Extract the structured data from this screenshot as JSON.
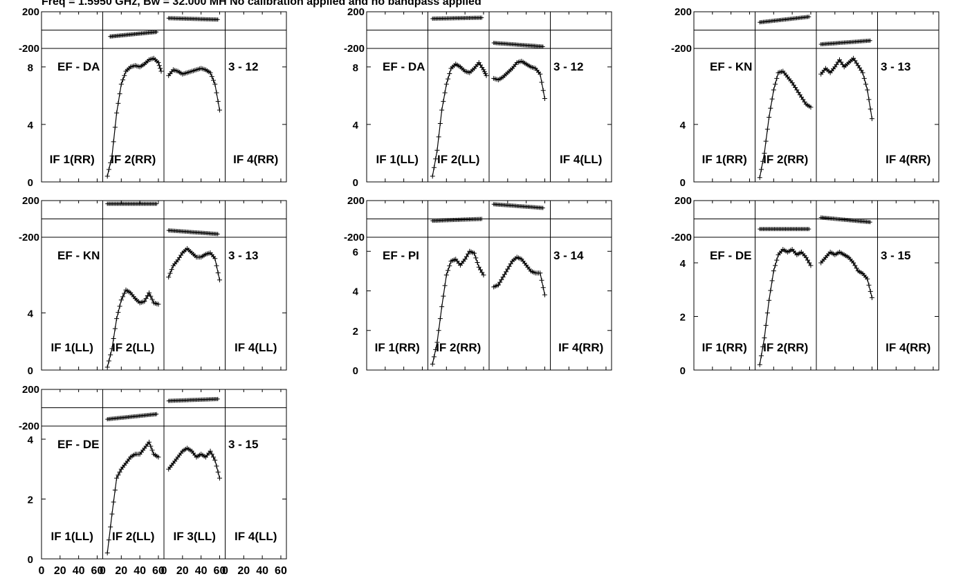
{
  "header": {
    "title": "Freq = 1.5950 GHz, Bw = 32.000 MH   No calibration applied and no bandpass applied"
  },
  "x_ticks": [
    "0",
    "20",
    "40",
    "60"
  ],
  "chart_data": [
    {
      "type": "line",
      "baseline": "EF - DA",
      "scan": "3 - 12",
      "pol": "RR",
      "if_labels": [
        "IF 1(RR)",
        "IF 2(RR)",
        "",
        "IF 4(RR)"
      ],
      "phase": {
        "ylim": [
          -200,
          200
        ],
        "ticks": [
          "200",
          "-200"
        ],
        "if1": [
          [
            8,
            -70
          ],
          [
            58,
            -20
          ]
        ],
        "if2": [
          [
            5,
            130
          ],
          [
            58,
            115
          ]
        ]
      },
      "amp": {
        "ylim": [
          0,
          9
        ],
        "ticks": [
          "8",
          "4",
          "0"
        ],
        "if1": [
          [
            5,
            0.4
          ],
          [
            10,
            1.8
          ],
          [
            15,
            4.8
          ],
          [
            20,
            6.8
          ],
          [
            25,
            7.7
          ],
          [
            30,
            8.0
          ],
          [
            35,
            8.1
          ],
          [
            40,
            8.0
          ],
          [
            45,
            8.2
          ],
          [
            50,
            8.5
          ],
          [
            55,
            8.6
          ],
          [
            60,
            8.3
          ],
          [
            63,
            7.7
          ]
        ],
        "if2": [
          [
            5,
            7.4
          ],
          [
            10,
            7.8
          ],
          [
            15,
            7.7
          ],
          [
            20,
            7.5
          ],
          [
            25,
            7.6
          ],
          [
            30,
            7.7
          ],
          [
            35,
            7.8
          ],
          [
            40,
            7.9
          ],
          [
            45,
            7.8
          ],
          [
            50,
            7.6
          ],
          [
            55,
            6.8
          ],
          [
            60,
            5.0
          ]
        ]
      }
    },
    {
      "type": "line",
      "baseline": "EF - DA",
      "scan": "3 - 12",
      "pol": "LL",
      "if_labels": [
        "IF 1(LL)",
        "IF 2(LL)",
        "",
        "IF 4(LL)"
      ],
      "phase": {
        "ylim": [
          -200,
          200
        ],
        "ticks": [
          "200",
          "-200"
        ],
        "if1": [
          [
            5,
            125
          ],
          [
            58,
            135
          ]
        ],
        "if2": [
          [
            5,
            -140
          ],
          [
            58,
            -180
          ]
        ]
      },
      "amp": {
        "ylim": [
          0,
          9
        ],
        "ticks": [
          "8",
          "4",
          "0"
        ],
        "if1": [
          [
            5,
            0.4
          ],
          [
            10,
            2.2
          ],
          [
            15,
            5.0
          ],
          [
            20,
            6.8
          ],
          [
            25,
            7.9
          ],
          [
            30,
            8.2
          ],
          [
            35,
            8.0
          ],
          [
            40,
            7.7
          ],
          [
            45,
            7.6
          ],
          [
            50,
            7.9
          ],
          [
            55,
            8.3
          ],
          [
            60,
            7.8
          ],
          [
            63,
            7.4
          ]
        ],
        "if2": [
          [
            5,
            7.2
          ],
          [
            10,
            7.1
          ],
          [
            15,
            7.3
          ],
          [
            20,
            7.6
          ],
          [
            25,
            7.9
          ],
          [
            30,
            8.3
          ],
          [
            35,
            8.4
          ],
          [
            40,
            8.2
          ],
          [
            45,
            8.0
          ],
          [
            50,
            7.9
          ],
          [
            55,
            7.5
          ],
          [
            60,
            5.8
          ]
        ]
      }
    },
    {
      "type": "line",
      "baseline": "EF - KN",
      "scan": "3 - 13",
      "pol": "RR",
      "if_labels": [
        "IF 1(RR)",
        "IF 2(RR)",
        "",
        "IF 4(RR)"
      ],
      "phase": {
        "ylim": [
          -200,
          200
        ],
        "ticks": [
          "200",
          "-200"
        ],
        "if1": [
          [
            5,
            85
          ],
          [
            58,
            145
          ]
        ],
        "if2": [
          [
            5,
            -155
          ],
          [
            58,
            -115
          ]
        ]
      },
      "amp": {
        "ylim": [
          0,
          9
        ],
        "ticks": [
          "4",
          "0"
        ],
        "if1": [
          [
            5,
            0.3
          ],
          [
            10,
            2.0
          ],
          [
            15,
            4.5
          ],
          [
            20,
            6.4
          ],
          [
            25,
            7.6
          ],
          [
            30,
            7.7
          ],
          [
            35,
            7.3
          ],
          [
            40,
            6.9
          ],
          [
            45,
            6.4
          ],
          [
            50,
            5.9
          ],
          [
            55,
            5.4
          ],
          [
            60,
            5.2
          ]
        ],
        "if2": [
          [
            5,
            7.5
          ],
          [
            10,
            7.9
          ],
          [
            15,
            7.6
          ],
          [
            20,
            8.0
          ],
          [
            25,
            8.5
          ],
          [
            30,
            8.0
          ],
          [
            35,
            8.3
          ],
          [
            40,
            8.6
          ],
          [
            45,
            8.1
          ],
          [
            50,
            7.6
          ],
          [
            55,
            6.4
          ],
          [
            60,
            4.4
          ]
        ]
      }
    },
    {
      "type": "line",
      "baseline": "EF - KN",
      "scan": "3 - 13",
      "pol": "LL",
      "if_labels": [
        "IF 1(LL)",
        "IF 2(LL)",
        "",
        "IF 4(LL)"
      ],
      "phase": {
        "ylim": [
          -200,
          200
        ],
        "ticks": [
          "200",
          "-200"
        ],
        "if1": [
          [
            5,
            165
          ],
          [
            58,
            165
          ]
        ],
        "if2": [
          [
            5,
            -125
          ],
          [
            58,
            -165
          ]
        ]
      },
      "amp": {
        "ylim": [
          0,
          9
        ],
        "ticks": [
          "4",
          "0"
        ],
        "if1": [
          [
            5,
            0.2
          ],
          [
            10,
            1.5
          ],
          [
            15,
            3.6
          ],
          [
            20,
            4.9
          ],
          [
            25,
            5.6
          ],
          [
            30,
            5.4
          ],
          [
            35,
            5.0
          ],
          [
            40,
            4.7
          ],
          [
            45,
            4.8
          ],
          [
            50,
            5.4
          ],
          [
            55,
            4.7
          ],
          [
            60,
            4.6
          ]
        ],
        "if2": [
          [
            5,
            6.5
          ],
          [
            10,
            7.3
          ],
          [
            15,
            7.7
          ],
          [
            20,
            8.2
          ],
          [
            25,
            8.5
          ],
          [
            30,
            8.2
          ],
          [
            35,
            7.9
          ],
          [
            40,
            7.9
          ],
          [
            45,
            8.1
          ],
          [
            50,
            8.2
          ],
          [
            55,
            7.8
          ],
          [
            60,
            6.3
          ]
        ]
      }
    },
    {
      "type": "line",
      "baseline": "EF - PI",
      "scan": "3 - 14",
      "pol": "RR",
      "if_labels": [
        "IF 1(RR)",
        "IF 2(RR)",
        "",
        "IF 4(RR)"
      ],
      "phase": {
        "ylim": [
          -200,
          200
        ],
        "ticks": [
          "200",
          "-200"
        ],
        "if1": [
          [
            5,
            -20
          ],
          [
            58,
            0
          ]
        ],
        "if2": [
          [
            5,
            160
          ],
          [
            58,
            120
          ]
        ]
      },
      "amp": {
        "ylim": [
          0,
          6.5
        ],
        "ticks": [
          "6",
          "4",
          "2",
          "0"
        ],
        "if1": [
          [
            5,
            0.3
          ],
          [
            10,
            1.4
          ],
          [
            15,
            3.2
          ],
          [
            20,
            4.8
          ],
          [
            25,
            5.5
          ],
          [
            30,
            5.6
          ],
          [
            35,
            5.3
          ],
          [
            40,
            5.6
          ],
          [
            45,
            6.0
          ],
          [
            50,
            5.9
          ],
          [
            55,
            5.2
          ],
          [
            60,
            4.8
          ]
        ],
        "if2": [
          [
            5,
            4.2
          ],
          [
            10,
            4.3
          ],
          [
            15,
            4.7
          ],
          [
            20,
            5.1
          ],
          [
            25,
            5.5
          ],
          [
            30,
            5.7
          ],
          [
            35,
            5.6
          ],
          [
            40,
            5.3
          ],
          [
            45,
            5.0
          ],
          [
            50,
            4.9
          ],
          [
            55,
            4.9
          ],
          [
            60,
            3.8
          ]
        ]
      }
    },
    {
      "type": "line",
      "baseline": "EF - DE",
      "scan": "3 - 15",
      "pol": "RR",
      "if_labels": [
        "IF 1(RR)",
        "IF 2(RR)",
        "",
        "IF 4(RR)"
      ],
      "phase": {
        "ylim": [
          -200,
          200
        ],
        "ticks": [
          "200",
          "-200"
        ],
        "if1": [
          [
            5,
            -110
          ],
          [
            58,
            -110
          ]
        ],
        "if2": [
          [
            5,
            15
          ],
          [
            58,
            -35
          ]
        ]
      },
      "amp": {
        "ylim": [
          0,
          4.8
        ],
        "ticks": [
          "4",
          "2",
          "0"
        ],
        "if1": [
          [
            5,
            0.2
          ],
          [
            10,
            1.2
          ],
          [
            15,
            2.6
          ],
          [
            20,
            3.7
          ],
          [
            25,
            4.3
          ],
          [
            30,
            4.5
          ],
          [
            35,
            4.4
          ],
          [
            40,
            4.5
          ],
          [
            45,
            4.3
          ],
          [
            50,
            4.4
          ],
          [
            55,
            4.2
          ],
          [
            60,
            3.9
          ]
        ],
        "if2": [
          [
            5,
            4.0
          ],
          [
            10,
            4.2
          ],
          [
            15,
            4.4
          ],
          [
            20,
            4.3
          ],
          [
            25,
            4.4
          ],
          [
            30,
            4.3
          ],
          [
            35,
            4.2
          ],
          [
            40,
            4.0
          ],
          [
            45,
            3.7
          ],
          [
            50,
            3.6
          ],
          [
            55,
            3.4
          ],
          [
            60,
            2.7
          ]
        ]
      }
    },
    {
      "type": "line",
      "baseline": "EF - DE",
      "scan": "3 - 15",
      "pol": "LL",
      "if_labels": [
        "IF 1(LL)",
        "IF 2(LL)",
        "IF 3(LL)",
        "IF 4(LL)"
      ],
      "phase": {
        "ylim": [
          -200,
          200
        ],
        "ticks": [
          "200",
          "-200"
        ],
        "if1": [
          [
            5,
            -125
          ],
          [
            58,
            -70
          ]
        ],
        "if2": [
          [
            5,
            75
          ],
          [
            58,
            95
          ]
        ]
      },
      "amp": {
        "ylim": [
          0,
          4.3
        ],
        "ticks": [
          "4",
          "2",
          "0"
        ],
        "if1": [
          [
            5,
            0.2
          ],
          [
            10,
            1.5
          ],
          [
            15,
            2.7
          ],
          [
            20,
            3.0
          ],
          [
            25,
            3.2
          ],
          [
            30,
            3.4
          ],
          [
            35,
            3.5
          ],
          [
            40,
            3.5
          ],
          [
            45,
            3.7
          ],
          [
            50,
            3.9
          ],
          [
            55,
            3.5
          ],
          [
            60,
            3.4
          ]
        ],
        "if2": [
          [
            5,
            3.0
          ],
          [
            10,
            3.2
          ],
          [
            15,
            3.4
          ],
          [
            20,
            3.6
          ],
          [
            25,
            3.7
          ],
          [
            30,
            3.6
          ],
          [
            35,
            3.4
          ],
          [
            40,
            3.5
          ],
          [
            45,
            3.4
          ],
          [
            50,
            3.6
          ],
          [
            55,
            3.3
          ],
          [
            60,
            2.7
          ]
        ]
      }
    }
  ]
}
